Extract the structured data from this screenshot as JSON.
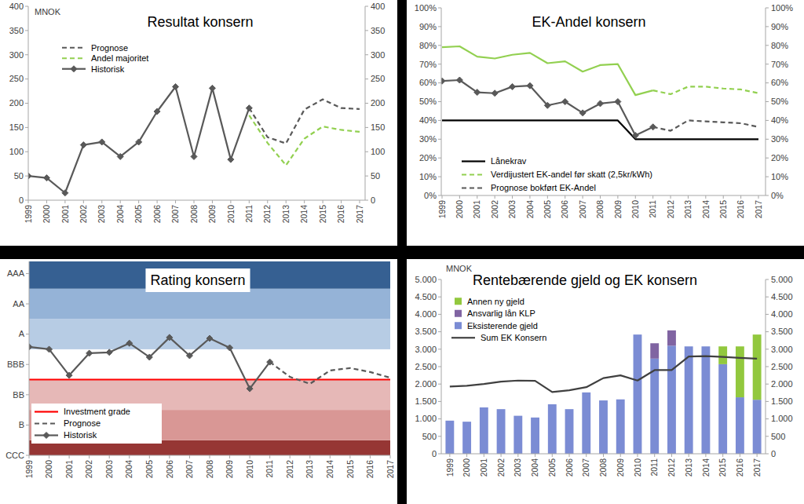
{
  "chart_data": [
    {
      "type": "line",
      "title": "Resultat konsern",
      "ylabel": "MNOK",
      "categories": [
        "1999",
        "2000",
        "2001",
        "2002",
        "2003",
        "2004",
        "2005",
        "2006",
        "2007",
        "2008",
        "2009",
        "2010",
        "2011",
        "2012",
        "2013",
        "2014",
        "2015",
        "2016",
        "2017"
      ],
      "series": [
        {
          "name": "Prognose",
          "color": "#595959",
          "line_style": "dashed",
          "values": [
            null,
            null,
            null,
            null,
            null,
            null,
            null,
            null,
            null,
            null,
            null,
            null,
            190,
            130,
            117,
            187,
            208,
            190,
            188
          ]
        },
        {
          "name": "Andel majoritet",
          "color": "#92d050",
          "line_style": "dashed",
          "values": [
            null,
            null,
            null,
            null,
            null,
            null,
            null,
            null,
            null,
            null,
            null,
            null,
            175,
            118,
            72,
            127,
            152,
            145,
            141
          ]
        },
        {
          "name": "Historisk",
          "color": "#595959",
          "line_style": "solid",
          "marker": "diamond",
          "values": [
            50,
            46,
            15,
            114,
            120,
            90,
            120,
            183,
            234,
            90,
            231,
            84,
            190,
            null,
            null,
            null,
            null,
            null,
            null
          ]
        }
      ],
      "ylim": [
        0,
        400
      ],
      "yticks": [
        0,
        50,
        100,
        150,
        200,
        250,
        300,
        350,
        400
      ],
      "y2lim": [
        0,
        400
      ],
      "y2ticks": [
        0,
        50,
        100,
        150,
        200,
        250,
        300,
        350,
        400
      ],
      "legend": "upper left"
    },
    {
      "type": "line",
      "title": "EK-Andel konsern",
      "categories": [
        "1999",
        "2000",
        "2001",
        "2002",
        "2003",
        "2004",
        "2005",
        "2006",
        "2007",
        "2008",
        "2009",
        "2010",
        "2011",
        "2012",
        "2013",
        "2014",
        "2015",
        "2016",
        "2017"
      ],
      "series": [
        {
          "name": "Lånekrav",
          "color": "#000000",
          "line_style": "solid",
          "values": [
            40,
            40,
            40,
            40,
            40,
            40,
            40,
            40,
            40,
            40,
            40,
            30,
            30,
            30,
            30,
            30,
            30,
            30,
            30
          ]
        },
        {
          "name": "Verdijustert EK-andel før skatt (2,5kr/kWh)",
          "color": "#92d050",
          "line_style": "dashed",
          "values": [
            null,
            null,
            null,
            null,
            null,
            null,
            null,
            null,
            null,
            null,
            null,
            null,
            56,
            54,
            58,
            58,
            57,
            56.5,
            54.5
          ]
        },
        {
          "name": "Prognose bokført EK-Andel",
          "color": "#595959",
          "line_style": "dashed",
          "values": [
            null,
            null,
            null,
            null,
            null,
            null,
            null,
            null,
            null,
            null,
            null,
            null,
            36.5,
            34.5,
            40,
            39.5,
            39,
            38.5,
            36.5
          ]
        },
        {
          "color": "#92d050",
          "line_style": "solid",
          "values": [
            79,
            79.5,
            74,
            73,
            75,
            76,
            70.5,
            71.5,
            66,
            69.5,
            70,
            53.5,
            56,
            null,
            null,
            null,
            null,
            null,
            null
          ]
        },
        {
          "color": "#595959",
          "line_style": "solid",
          "marker": "diamond",
          "values": [
            61,
            61.5,
            55,
            54.5,
            58,
            58.5,
            48,
            50,
            44,
            49,
            50,
            32,
            36.5,
            null,
            null,
            null,
            null,
            null,
            null
          ]
        }
      ],
      "ylim": [
        0,
        100
      ],
      "yticks": [
        {
          "value": 0,
          "label": "0%"
        },
        {
          "value": 10,
          "label": "10%"
        },
        {
          "value": 20,
          "label": "20%"
        },
        {
          "value": 30,
          "label": "30%"
        },
        {
          "value": 40,
          "label": "40%"
        },
        {
          "value": 50,
          "label": "50%"
        },
        {
          "value": 60,
          "label": "60%"
        },
        {
          "value": 70,
          "label": "70%"
        },
        {
          "value": 80,
          "label": "80%"
        },
        {
          "value": 90,
          "label": "90%"
        },
        {
          "value": 100,
          "label": "100%"
        }
      ],
      "y2lim": [
        0,
        100
      ],
      "y2ticks": [
        {
          "value": 0,
          "label": "0%"
        },
        {
          "value": 10,
          "label": "10%"
        },
        {
          "value": 20,
          "label": "20%"
        },
        {
          "value": 30,
          "label": "30%"
        },
        {
          "value": 40,
          "label": "40%"
        },
        {
          "value": 50,
          "label": "50%"
        },
        {
          "value": 60,
          "label": "60%"
        },
        {
          "value": 70,
          "label": "70%"
        },
        {
          "value": 80,
          "label": "80%"
        },
        {
          "value": 90,
          "label": "90%"
        },
        {
          "value": 100,
          "label": "100%"
        }
      ],
      "legend": "lower left"
    },
    {
      "type": "line",
      "title": "Rating konsern",
      "categories": [
        "1999",
        "2000",
        "2001",
        "2002",
        "2003",
        "2004",
        "2005",
        "2006",
        "2007",
        "2008",
        "2009",
        "2010",
        "2011",
        "2012",
        "2013",
        "2014",
        "2015",
        "2016",
        "2017"
      ],
      "series": [
        {
          "name": "Investment grade",
          "color": "#ff0000",
          "line_style": "solid",
          "values": [
            3.5,
            3.5,
            3.5,
            3.5,
            3.5,
            3.5,
            3.5,
            3.5,
            3.5,
            3.5,
            3.5,
            3.5,
            3.5,
            3.5,
            3.5,
            3.5,
            3.5,
            3.5,
            3.5
          ]
        },
        {
          "name": "Prognose",
          "color": "#595959",
          "line_style": "dashed",
          "values": [
            null,
            null,
            null,
            null,
            null,
            null,
            null,
            null,
            null,
            null,
            null,
            null,
            4.08,
            3.59,
            3.36,
            3.8,
            3.88,
            3.75,
            3.56
          ]
        },
        {
          "name": "Historisk",
          "color": "#595959",
          "line_style": "solid",
          "marker": "diamond",
          "values": [
            4.58,
            4.5,
            3.64,
            4.37,
            4.4,
            4.7,
            4.24,
            4.89,
            4.29,
            4.86,
            4.55,
            3.2,
            4.08,
            null,
            null,
            null,
            null,
            null,
            null
          ]
        }
      ],
      "ylim": [
        1,
        7.4
      ],
      "yticks": [
        {
          "value": 1,
          "label": "CCC"
        },
        {
          "value": 2,
          "label": "B"
        },
        {
          "value": 3,
          "label": "BB"
        },
        {
          "value": 4,
          "label": "BBB"
        },
        {
          "value": 5,
          "label": "A"
        },
        {
          "value": 6,
          "label": "AA"
        },
        {
          "value": 7,
          "label": "AAA"
        }
      ],
      "legend": "lower left"
    },
    {
      "type": "bar",
      "title": "Rentebærende gjeld og EK konsern",
      "ylabel": "MNOK",
      "stacked": true,
      "categories": [
        "1999",
        "2000",
        "2001",
        "2002",
        "2003",
        "2004",
        "2005",
        "2006",
        "2007",
        "2008",
        "2009",
        "2010",
        "2011",
        "2012",
        "2013",
        "2014",
        "2015",
        "2016",
        "2017"
      ],
      "series": [
        {
          "name": "Annen ny gjeld",
          "type": "bar",
          "color": "#92c83e",
          "values": [
            null,
            null,
            null,
            null,
            null,
            null,
            null,
            null,
            null,
            null,
            null,
            null,
            null,
            null,
            null,
            null,
            510,
            1460,
            1870
          ]
        },
        {
          "name": "Ansvarlig lån KLP",
          "type": "bar",
          "color": "#8064a2",
          "values": [
            null,
            null,
            null,
            null,
            null,
            null,
            null,
            null,
            null,
            null,
            null,
            null,
            440,
            440,
            null,
            null,
            null,
            null,
            null
          ]
        },
        {
          "name": "Eksisterende gjeld",
          "type": "bar",
          "color": "#7b8cd4",
          "values": [
            950,
            920,
            1330,
            1280,
            1090,
            1040,
            1420,
            1280,
            1760,
            1530,
            1560,
            3420,
            2730,
            3100,
            3080,
            3080,
            2570,
            1620,
            1550
          ]
        },
        {
          "name": "Sum EK Konsern",
          "type": "line",
          "color": "#404040",
          "line_style": "solid",
          "values": [
            1930,
            1950,
            2000,
            2070,
            2100,
            2090,
            1770,
            1820,
            1910,
            2170,
            2250,
            2100,
            2400,
            2400,
            2790,
            2800,
            2780,
            2750,
            2730
          ]
        }
      ],
      "ylim": [
        0,
        5000
      ],
      "yticks": [
        0,
        500,
        {
          "value": 1000,
          "label": "1.000"
        },
        {
          "value": 1500,
          "label": "1.500"
        },
        {
          "value": 2000,
          "label": "2.000"
        },
        {
          "value": 2500,
          "label": "2.500"
        },
        {
          "value": 3000,
          "label": "3.000"
        },
        {
          "value": 3500,
          "label": "3.500"
        },
        {
          "value": 4000,
          "label": "4.000"
        },
        {
          "value": 4500,
          "label": "4.500"
        },
        {
          "value": 5000,
          "label": "5.000"
        }
      ],
      "y2lim": [
        0,
        5000
      ],
      "y2ticks": [
        0,
        500,
        {
          "value": 1000,
          "label": "1.000"
        },
        {
          "value": 1500,
          "label": "1.500"
        },
        {
          "value": 2000,
          "label": "2.000"
        },
        {
          "value": 2500,
          "label": "2.500"
        },
        {
          "value": 3000,
          "label": "3.000"
        },
        {
          "value": 3500,
          "label": "3.500"
        },
        {
          "value": 4000,
          "label": "4.000"
        },
        {
          "value": 4500,
          "label": "4.500"
        },
        {
          "value": 5000,
          "label": "5.000"
        }
      ],
      "legend": "upper left"
    }
  ]
}
